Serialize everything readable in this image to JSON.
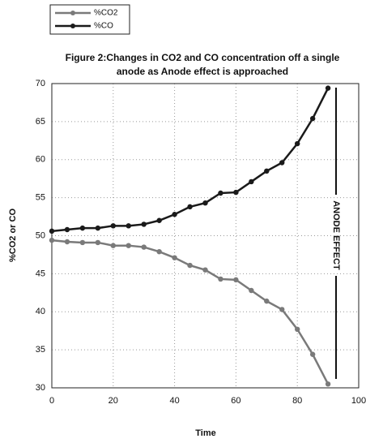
{
  "chart_data": {
    "type": "line",
    "title": "Figure 2:Changes in CO2 and CO concentration off a single anode as Anode effect is approached",
    "x_label": "Time",
    "y_label": "%CO2 or CO",
    "annotation": "ANODE EFFECT",
    "x": [
      0,
      5,
      10,
      15,
      20,
      25,
      30,
      35,
      40,
      45,
      50,
      55,
      60,
      65,
      70,
      75,
      80,
      85,
      90
    ],
    "series": [
      {
        "name": "%CO2",
        "color": "#7a7a7a",
        "values": [
          49.4,
          49.2,
          49.1,
          49.1,
          48.7,
          48.7,
          48.5,
          47.9,
          47.1,
          46.1,
          45.5,
          44.3,
          44.2,
          42.8,
          41.4,
          40.3,
          37.7,
          34.4,
          30.5
        ]
      },
      {
        "name": "%CO",
        "color": "#1a1a1a",
        "values": [
          50.6,
          50.8,
          51.0,
          51.0,
          51.3,
          51.3,
          51.5,
          52.0,
          52.8,
          53.8,
          54.3,
          55.6,
          55.7,
          57.1,
          58.5,
          59.6,
          62.1,
          65.4,
          69.4
        ]
      }
    ],
    "xlim": [
      0,
      100
    ],
    "xticks": [
      0,
      20,
      40,
      60,
      80,
      100
    ],
    "ylim": [
      30,
      70
    ],
    "yticks": [
      30,
      35,
      40,
      45,
      50,
      55,
      60,
      65,
      70
    ],
    "grid": true,
    "legend": "top-left"
  }
}
